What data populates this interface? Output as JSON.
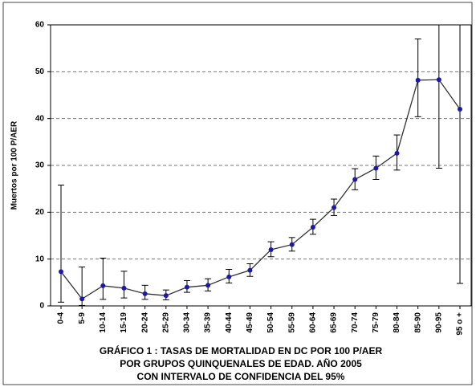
{
  "chart_data": {
    "type": "line",
    "y_label": "Muertos por 100 P/AER",
    "caption": [
      "GRÁFICO 1 :  TASAS DE MORTALIDAD EN DC  POR 100 P/AER",
      "POR GRUPOS QUINQUENALES DE EDAD. AÑO 2005",
      "CON INTERVALO DE CONFIDENCIA DEL 95%"
    ],
    "categories": [
      "0-4",
      "5-9",
      "10-14",
      "15-19",
      "20-24",
      "25-29",
      "30-34",
      "35-39",
      "40-44",
      "45-49",
      "50-54",
      "55-59",
      "60-64",
      "65-69",
      "70-74",
      "75-79",
      "80-84",
      "85-90",
      "90-95",
      "95 o +"
    ],
    "series": [
      {
        "color": "#1a1aa6",
        "line_color": "#333333",
        "values": [
          7.3,
          1.5,
          4.3,
          3.8,
          2.6,
          2.2,
          4.0,
          4.4,
          6.2,
          7.6,
          12.0,
          13.1,
          16.8,
          21.0,
          27.0,
          29.4,
          32.6,
          48.2,
          48.3,
          42.0
        ],
        "lower": [
          0.8,
          0.1,
          1.4,
          1.7,
          1.4,
          1.3,
          2.9,
          3.2,
          4.9,
          6.3,
          10.5,
          11.7,
          15.3,
          19.3,
          24.8,
          27.0,
          29.0,
          40.4,
          29.4,
          4.8
        ],
        "upper": [
          25.8,
          8.3,
          10.2,
          7.4,
          4.4,
          3.4,
          5.4,
          5.8,
          7.8,
          9.0,
          13.7,
          14.6,
          18.5,
          22.8,
          29.3,
          32.0,
          36.5,
          57.0,
          60,
          60
        ]
      }
    ],
    "ylim": [
      0,
      60
    ],
    "yticks": [
      0,
      10,
      20,
      30,
      40,
      50,
      60
    ],
    "grid": true
  }
}
